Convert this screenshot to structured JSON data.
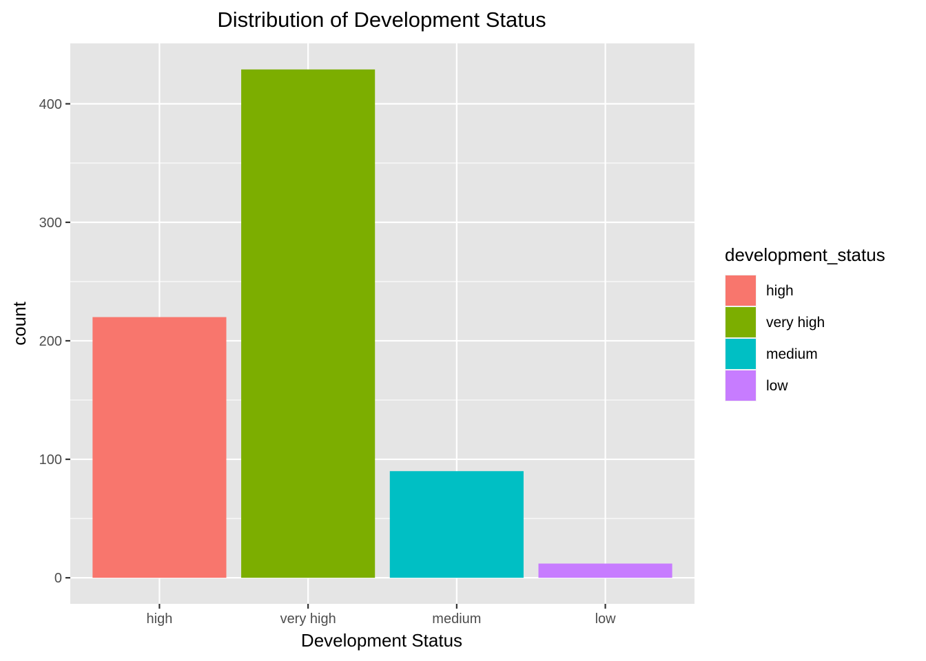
{
  "chart_data": {
    "type": "bar",
    "title": "Distribution of Development Status",
    "xlabel": "Development Status",
    "ylabel": "count",
    "categories": [
      "high",
      "very high",
      "medium",
      "low"
    ],
    "values": [
      220,
      429,
      90,
      12
    ],
    "colors": [
      "#F8766D",
      "#7CAE00",
      "#00BFC4",
      "#C77CFF"
    ],
    "ylim": [
      -22,
      451
    ],
    "yticks": [
      0,
      100,
      200,
      300,
      400
    ],
    "grid": true,
    "legend": {
      "title": "development_status",
      "position": "right",
      "entries": [
        "high",
        "very high",
        "medium",
        "low"
      ]
    }
  }
}
